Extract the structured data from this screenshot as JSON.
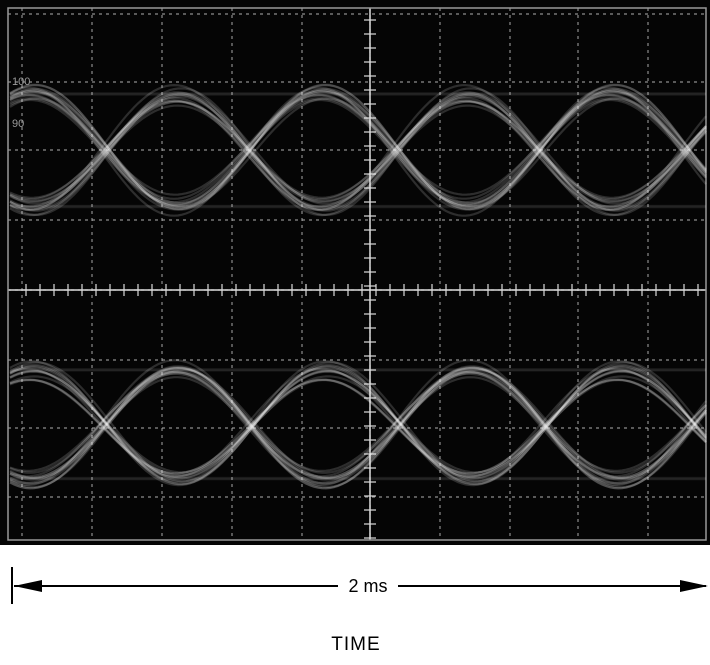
{
  "screen": {
    "labels": [
      "100",
      "90"
    ]
  },
  "scale": {
    "span_label": "2 ms"
  },
  "axis_label": "TIME"
}
